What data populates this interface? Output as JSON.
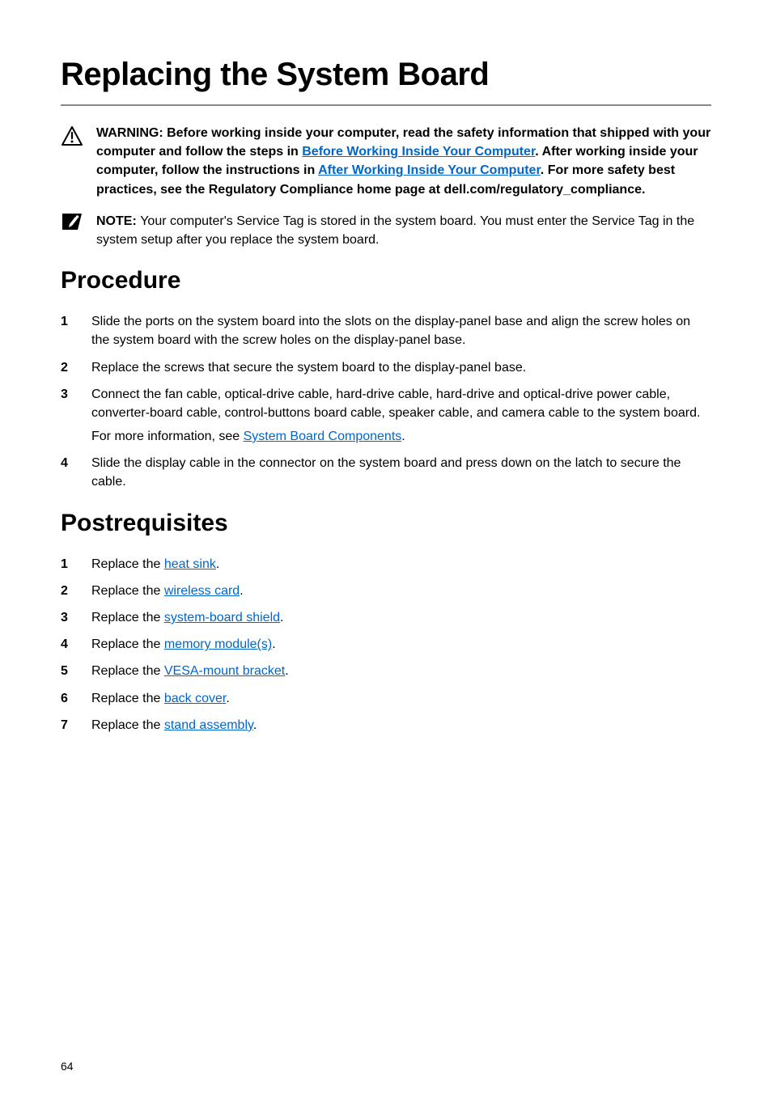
{
  "title": "Replacing the System Board",
  "warning_block": {
    "prefix": "WARNING: Before working inside your computer, read the safety information that shipped with your computer and follow the steps in ",
    "link1": "Before Working Inside Your Computer",
    "mid1": ". After working inside your computer, follow the instructions in ",
    "link2": "After Working Inside Your Computer",
    "suffix": ". For more safety best practices, see the Regulatory Compliance home page at dell.com/regulatory_compliance."
  },
  "note_block": {
    "prefix": "NOTE: ",
    "text": "Your computer's Service Tag is stored in the system board. You must enter the Service Tag in the system setup after you replace the system board."
  },
  "procedure": {
    "heading": "Procedure",
    "items": [
      {
        "paragraphs": [
          {
            "text": "Slide the ports on the system board into the slots on the display-panel base and align the screw holes on the system board with the screw holes on the display-panel base."
          }
        ]
      },
      {
        "paragraphs": [
          {
            "text": "Replace the screws that secure the system board to the display-panel base."
          }
        ]
      },
      {
        "paragraphs": [
          {
            "text": "Connect the fan cable, optical-drive cable, hard-drive cable, hard-drive and optical-drive power cable, converter-board cable, control-buttons board cable, speaker cable, and camera cable to the system board."
          },
          {
            "prefix": "For more information, see ",
            "link": "System Board Components",
            "suffix": "."
          }
        ]
      },
      {
        "paragraphs": [
          {
            "text": "Slide the display cable in the connector on the system board and press down on the latch to secure the cable."
          }
        ]
      }
    ]
  },
  "postrequisites": {
    "heading": "Postrequisites",
    "items": [
      {
        "prefix": "Replace the ",
        "link": "heat sink",
        "suffix": "."
      },
      {
        "prefix": "Replace the ",
        "link": "wireless card",
        "suffix": "."
      },
      {
        "prefix": "Replace the ",
        "link": "system-board shield",
        "suffix": "."
      },
      {
        "prefix": "Replace the ",
        "link": "memory module(s)",
        "suffix": "."
      },
      {
        "prefix": "Replace the ",
        "link": "VESA-mount bracket",
        "suffix": "."
      },
      {
        "prefix": "Replace the ",
        "link": "back cover",
        "suffix": "."
      },
      {
        "prefix": "Replace the ",
        "link": "stand assembly",
        "suffix": "."
      }
    ]
  },
  "page_number": "64",
  "colors": {
    "link": "#0066cc",
    "text": "#000000",
    "underline": "#888888"
  }
}
